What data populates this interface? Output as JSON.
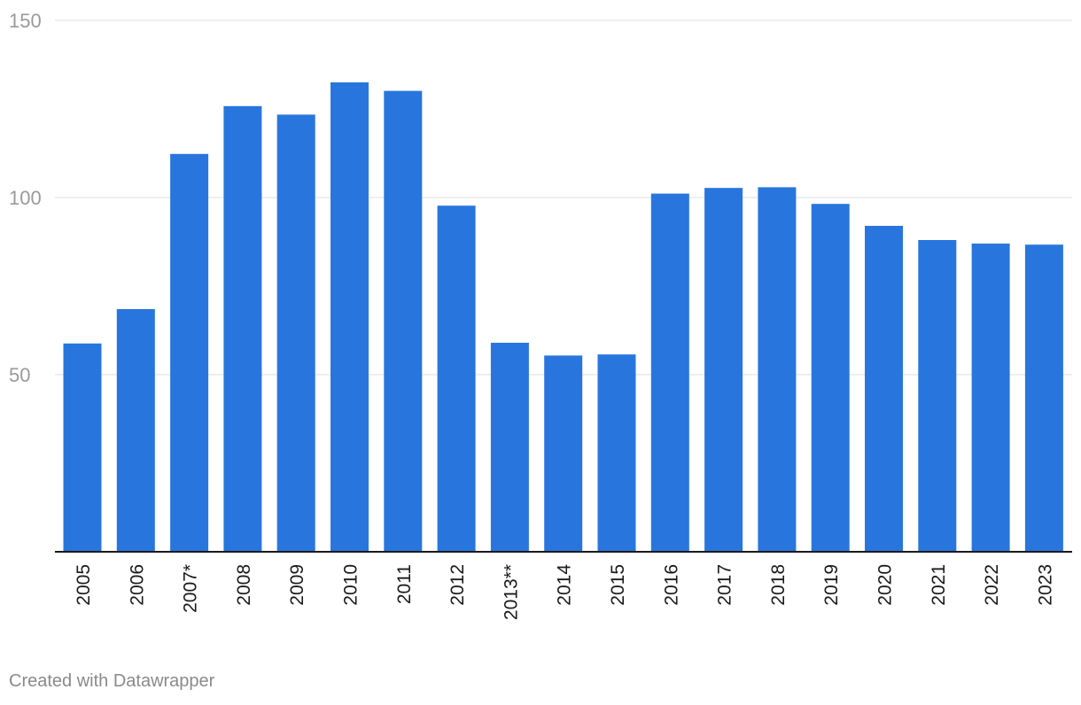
{
  "chart_data": {
    "type": "bar",
    "categories": [
      "2005",
      "2006",
      "2007*",
      "2008",
      "2009",
      "2010",
      "2011",
      "2012",
      "2013**",
      "2014",
      "2015",
      "2016",
      "2017",
      "2018",
      "2019",
      "2020",
      "2021",
      "2022",
      "2023"
    ],
    "values": [
      58.8,
      68.5,
      112.3,
      125.8,
      123.4,
      132.5,
      130.1,
      97.7,
      59.0,
      55.4,
      55.7,
      101.1,
      102.7,
      102.9,
      98.2,
      92.0,
      88.0,
      87.0,
      86.7
    ],
    "ylim": [
      0,
      150
    ],
    "yticks": [
      50,
      100,
      150
    ],
    "bar_color": "#2876dd",
    "grid": true,
    "title": "",
    "xlabel": "",
    "ylabel": ""
  },
  "footer": {
    "credit": "Created with Datawrapper"
  }
}
